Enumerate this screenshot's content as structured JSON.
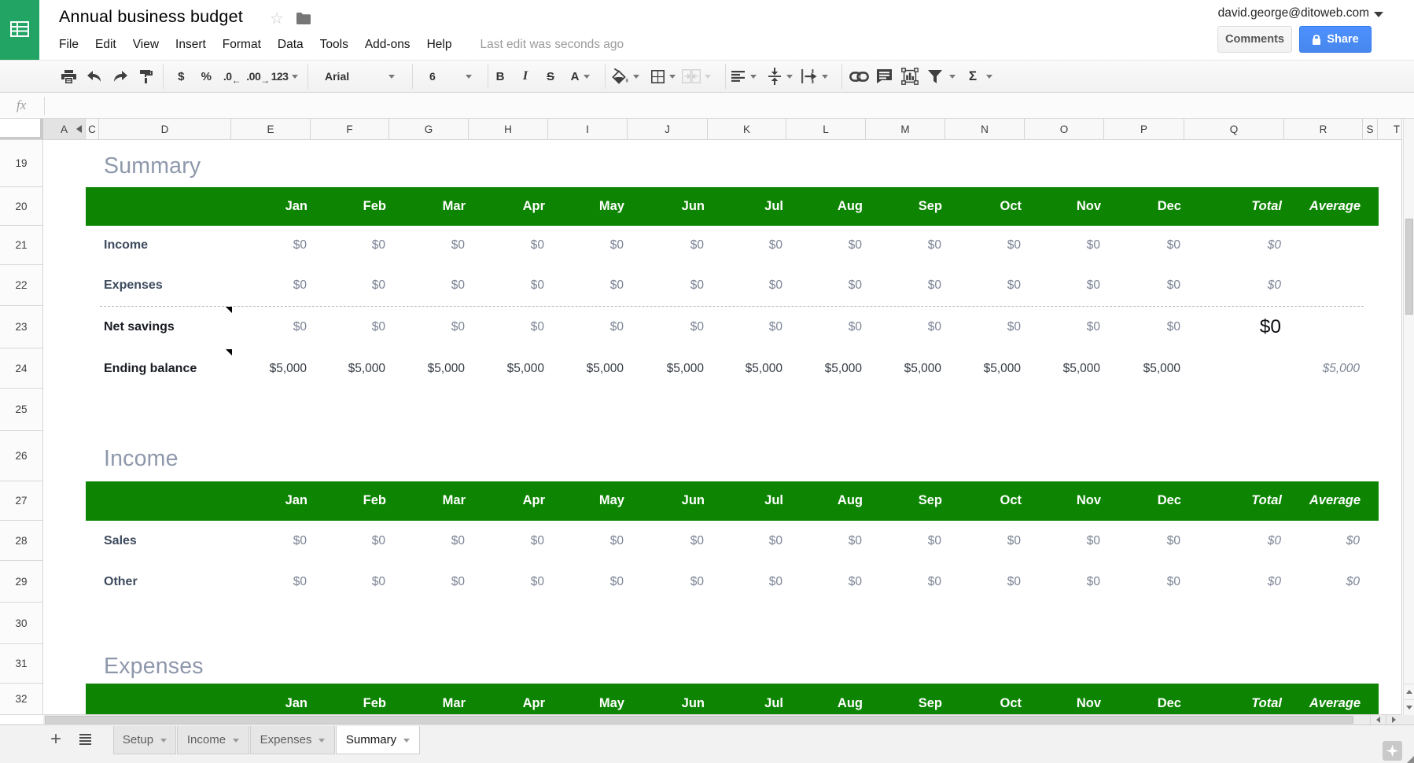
{
  "header": {
    "title": "Annual business budget",
    "menu": [
      "File",
      "Edit",
      "View",
      "Insert",
      "Format",
      "Data",
      "Tools",
      "Add-ons",
      "Help"
    ],
    "last_edit": "Last edit was seconds ago",
    "account_email": "david.george@ditoweb.com",
    "comments_label": "Comments",
    "share_label": "Share"
  },
  "toolbar": {
    "currency": "$",
    "percent": "%",
    "decrease_decimal": ".0",
    "increase_decimal": ".00",
    "more_formats": "123",
    "font_name": "Arial",
    "font_size": "6",
    "bold": "B",
    "italic": "I",
    "strikethrough": "S",
    "text_color": "A",
    "functions": "Σ"
  },
  "formula_bar": {
    "fx_label": "fx"
  },
  "grid": {
    "column_headers": [
      "A",
      "C",
      "D",
      "E",
      "F",
      "G",
      "H",
      "I",
      "J",
      "K",
      "L",
      "M",
      "N",
      "O",
      "P",
      "Q",
      "R",
      "S",
      "T"
    ],
    "row_numbers": [
      19,
      20,
      21,
      22,
      23,
      24,
      25,
      26,
      27,
      28,
      29,
      30,
      31,
      32
    ],
    "months": [
      "Jan",
      "Feb",
      "Mar",
      "Apr",
      "May",
      "Jun",
      "Jul",
      "Aug",
      "Sep",
      "Oct",
      "Nov",
      "Dec"
    ],
    "total_label": "Total",
    "average_label": "Average"
  },
  "sections": [
    {
      "heading": "Summary",
      "heading_row": 19,
      "header_row": 20,
      "rows": [
        {
          "row": 21,
          "label": "Income",
          "label_style": "navy",
          "values": [
            "$0",
            "$0",
            "$0",
            "$0",
            "$0",
            "$0",
            "$0",
            "$0",
            "$0",
            "$0",
            "$0",
            "$0"
          ],
          "value_style": "grey",
          "total": "$0",
          "total_style": "italic",
          "average": "",
          "average_style": "italic"
        },
        {
          "row": 22,
          "label": "Expenses",
          "label_style": "navy",
          "values": [
            "$0",
            "$0",
            "$0",
            "$0",
            "$0",
            "$0",
            "$0",
            "$0",
            "$0",
            "$0",
            "$0",
            "$0"
          ],
          "value_style": "grey",
          "total": "$0",
          "total_style": "italic",
          "average": "",
          "average_style": "italic"
        },
        {
          "row": 23,
          "label": "Net savings",
          "label_style": "dark",
          "has_note": true,
          "dashed_top": true,
          "values": [
            "$0",
            "$0",
            "$0",
            "$0",
            "$0",
            "$0",
            "$0",
            "$0",
            "$0",
            "$0",
            "$0",
            "$0"
          ],
          "value_style": "grey",
          "total": "$0",
          "total_style": "big",
          "average": "",
          "average_style": "italic"
        },
        {
          "row": 24,
          "label": "Ending balance",
          "label_style": "dark",
          "has_note": true,
          "values": [
            "$5,000",
            "$5,000",
            "$5,000",
            "$5,000",
            "$5,000",
            "$5,000",
            "$5,000",
            "$5,000",
            "$5,000",
            "$5,000",
            "$5,000",
            "$5,000"
          ],
          "value_style": "dark",
          "total": "",
          "total_style": "italic",
          "average": "$5,000",
          "average_style": "italic"
        }
      ]
    },
    {
      "heading": "Income",
      "heading_row": 26,
      "header_row": 27,
      "rows": [
        {
          "row": 28,
          "label": "Sales",
          "label_style": "navy",
          "values": [
            "$0",
            "$0",
            "$0",
            "$0",
            "$0",
            "$0",
            "$0",
            "$0",
            "$0",
            "$0",
            "$0",
            "$0"
          ],
          "value_style": "grey",
          "total": "$0",
          "total_style": "italic",
          "average": "$0",
          "average_style": "italic"
        },
        {
          "row": 29,
          "label": "Other",
          "label_style": "navy",
          "values": [
            "$0",
            "$0",
            "$0",
            "$0",
            "$0",
            "$0",
            "$0",
            "$0",
            "$0",
            "$0",
            "$0",
            "$0"
          ],
          "value_style": "grey",
          "total": "$0",
          "total_style": "italic",
          "average": "$0",
          "average_style": "italic"
        }
      ]
    },
    {
      "heading": "Expenses",
      "heading_row": 31,
      "header_row": 32,
      "rows": []
    }
  ],
  "tabs": {
    "items": [
      {
        "label": "Setup",
        "active": false
      },
      {
        "label": "Income",
        "active": false
      },
      {
        "label": "Expenses",
        "active": false
      },
      {
        "label": "Summary",
        "active": true
      }
    ]
  },
  "colors": {
    "logo_green": "#21a464",
    "table_header_green": "#0d8502",
    "section_heading": "#8e98ab",
    "share_blue": "#4d90fe"
  }
}
